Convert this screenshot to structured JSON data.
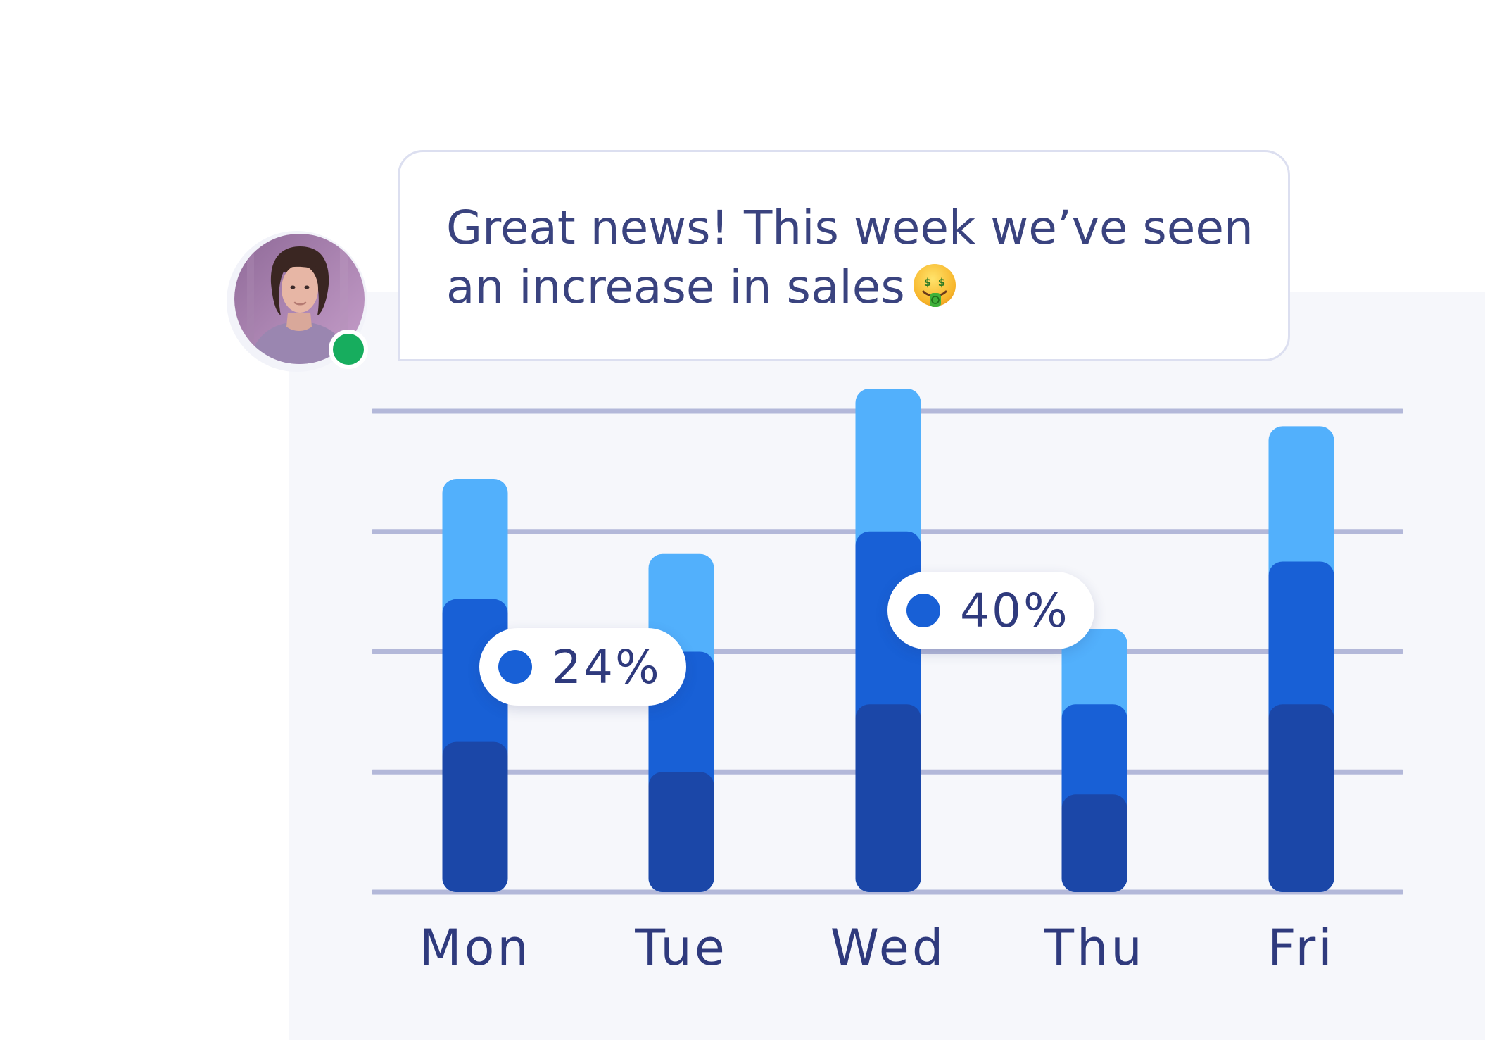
{
  "message": {
    "text": "Great news! This week we’ve seen an increase in sales",
    "emoji_icon": "money-mouth-face-icon"
  },
  "user": {
    "avatar_icon": "user-avatar-photo",
    "status": "online",
    "status_color": "#17ad5e"
  },
  "colors": {
    "segment_bottom": "#1b47a8",
    "segment_middle": "#1860d6",
    "segment_top": "#52b0fc",
    "gridline": "#b3b8d9",
    "text": "#2f3a7d",
    "panel_background": "#f6f7fb"
  },
  "chart_data": {
    "type": "bar",
    "stacked": true,
    "categories": [
      "Mon",
      "Tue",
      "Wed",
      "Thu",
      "Fri"
    ],
    "series": [
      {
        "values": [
          20,
          16,
          25,
          13,
          25
        ]
      },
      {
        "values": [
          19,
          16,
          23,
          12,
          19
        ]
      },
      {
        "values": [
          16,
          13,
          19,
          10,
          18
        ]
      }
    ],
    "ylim": [
      0,
      64
    ],
    "gridlines": [
      0,
      16,
      32,
      48,
      64
    ],
    "grid": true,
    "y_tick_labels_shown": false,
    "callouts": [
      {
        "category": "Mon",
        "label": "24%"
      },
      {
        "category": "Wed",
        "label": "40%"
      }
    ]
  }
}
